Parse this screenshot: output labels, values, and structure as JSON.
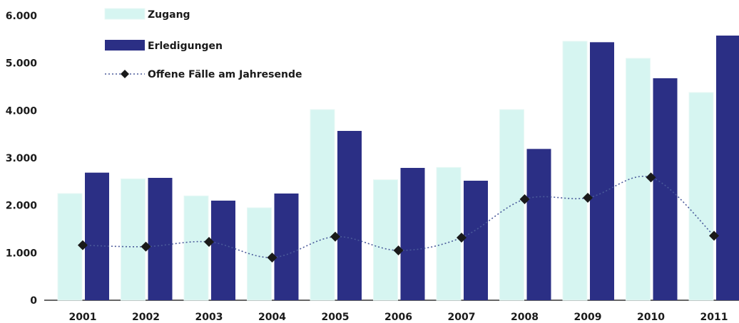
{
  "chart_data": {
    "type": "bar",
    "categories": [
      "2001",
      "2002",
      "2003",
      "2004",
      "2005",
      "2006",
      "2007",
      "2008",
      "2009",
      "2010",
      "2011"
    ],
    "series": [
      {
        "name": "Zugang",
        "kind": "bar",
        "values": [
          2250,
          2560,
          2200,
          1950,
          4020,
          2540,
          2800,
          4020,
          5460,
          5100,
          4380
        ]
      },
      {
        "name": "Erledigungen",
        "kind": "bar",
        "values": [
          2690,
          2580,
          2100,
          2250,
          3570,
          2790,
          2520,
          3190,
          5440,
          4680,
          5580
        ]
      },
      {
        "name": "Offene Fälle am Jahresende",
        "kind": "line",
        "values": [
          1160,
          1130,
          1230,
          900,
          1340,
          1050,
          1320,
          2130,
          2160,
          2590,
          1360
        ]
      }
    ],
    "yticks": [
      "0",
      "1.000",
      "2.000",
      "3.000",
      "4.000",
      "5.000",
      "6.000"
    ],
    "ylim": [
      0,
      6000
    ],
    "legend_position": "top-left",
    "colors": {
      "zugang": "#d6f5f1",
      "erledigungen": "#2b2f85",
      "offene": "#1a1a1a",
      "line": "#4a5a9a"
    }
  }
}
